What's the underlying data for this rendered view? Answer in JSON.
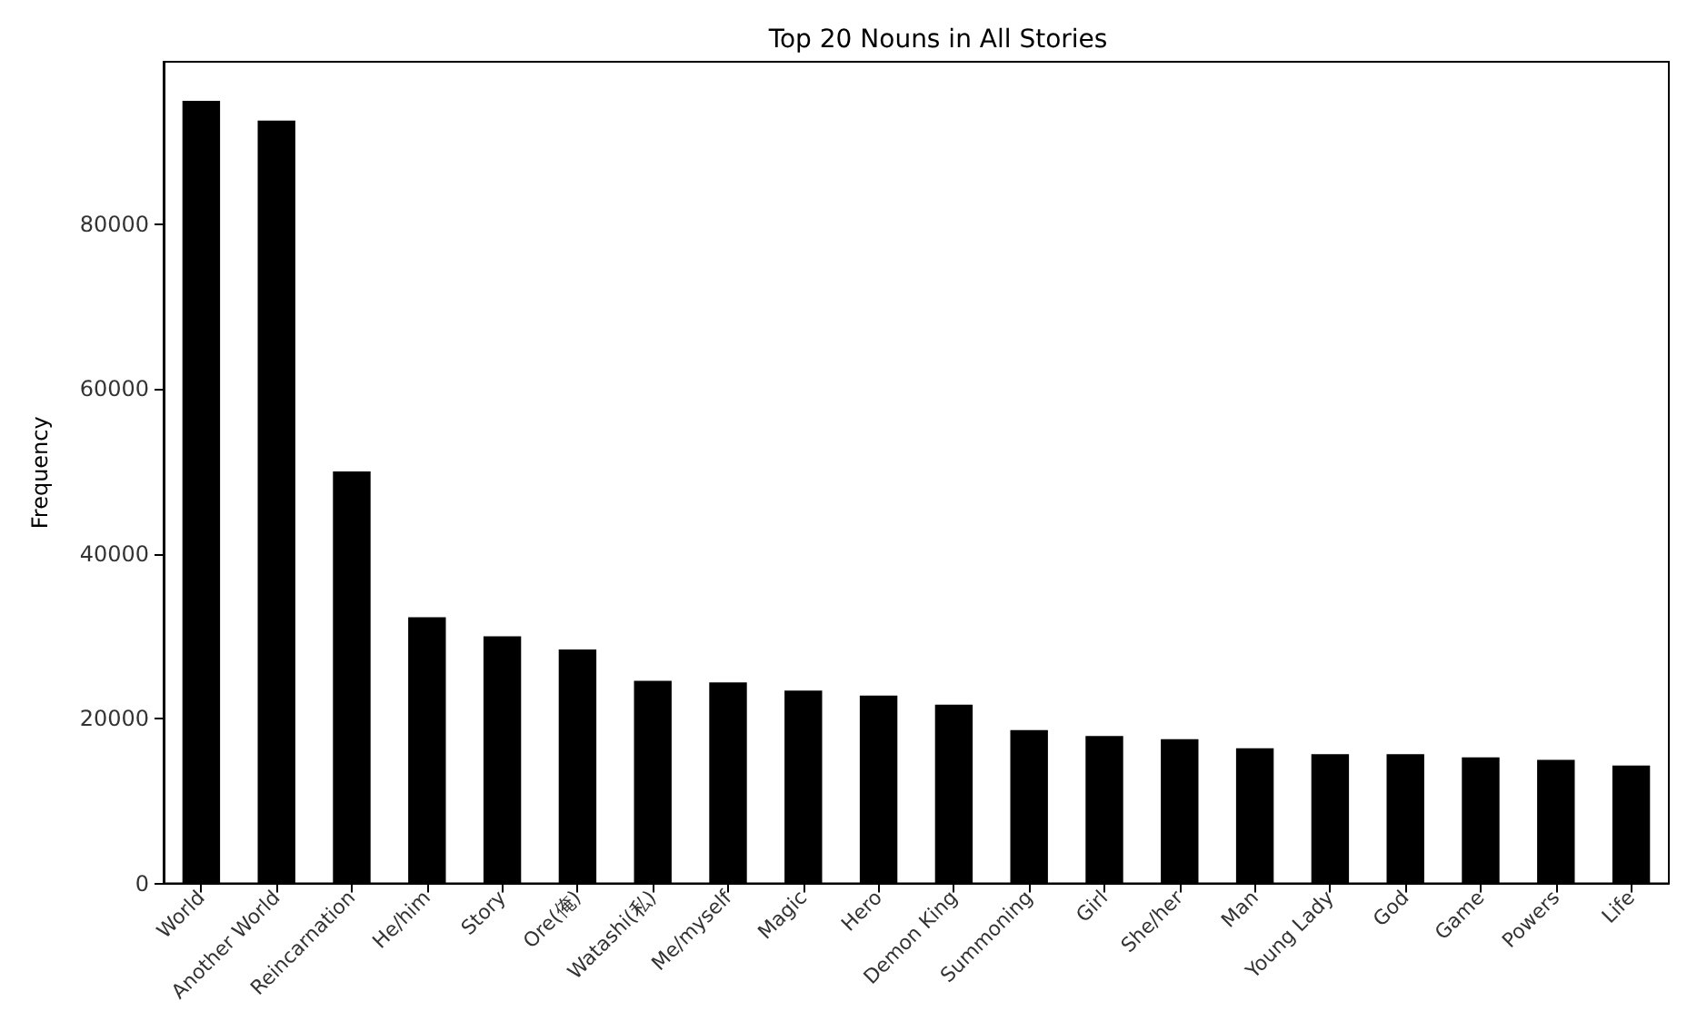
{
  "chart_data": {
    "type": "bar",
    "title": "Top 20 Nouns in All Stories",
    "ylabel": "Frequency",
    "categories": [
      "World",
      "Another World",
      "Reincarnation",
      "He/him",
      "Story",
      "Ore(俺)",
      "Watashi(私)",
      "Me/myself",
      "Magic",
      "Hero",
      "Demon King",
      "Summoning",
      "Girl",
      "She/her",
      "Man",
      "Young Lady",
      "God",
      "Game",
      "Powers",
      "Life"
    ],
    "values": [
      95000,
      92600,
      50000,
      32300,
      30000,
      28400,
      24600,
      24400,
      23400,
      22800,
      21700,
      18600,
      17900,
      17500,
      16400,
      15700,
      15700,
      15300,
      15000,
      14300
    ],
    "color": "#000000",
    "ylim": [
      0,
      99750
    ],
    "yticks": [
      0,
      20000,
      40000,
      60000,
      80000
    ],
    "grid": false
  }
}
